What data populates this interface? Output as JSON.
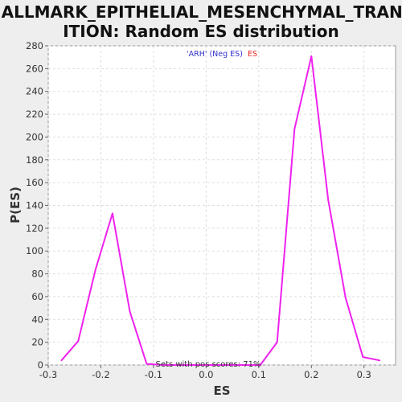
{
  "chart_data": {
    "type": "line",
    "title_lines": [
      "HALLMARK_EPITHELIAL_MESENCHYMAL_TRANS",
      "ITION: Random ES distribution"
    ],
    "xlabel": "ES",
    "ylabel": "P(ES)",
    "xlim": [
      -0.3,
      0.36
    ],
    "ylim": [
      0,
      280
    ],
    "x_ticks": [
      -0.3,
      -0.2,
      -0.1,
      0.0,
      0.1,
      0.2,
      0.3
    ],
    "x_tick_labels": [
      "-0.3",
      "-0.2",
      "-0.1",
      "0.0",
      "0.1",
      "0.2",
      "0.3"
    ],
    "y_ticks": [
      0,
      20,
      40,
      60,
      80,
      100,
      120,
      140,
      160,
      180,
      200,
      220,
      240,
      260,
      280
    ],
    "y_tick_labels": [
      "0",
      "20",
      "40",
      "60",
      "80",
      "100",
      "120",
      "140",
      "160",
      "180",
      "200",
      "220",
      "240",
      "260",
      "280"
    ],
    "grid": true,
    "legend": {
      "placement": "top-center",
      "part1": "'ARH' (Neg ES)",
      "part2": "ES",
      "part1_color": "#3333cc",
      "part2_color": "#ee2222"
    },
    "annotation": "Sets with pos scores: 71%",
    "series": [
      {
        "color": "#ee22ee",
        "points": [
          [
            -0.275,
            4
          ],
          [
            -0.243,
            21
          ],
          [
            -0.21,
            84
          ],
          [
            -0.178,
            133
          ],
          [
            -0.145,
            47
          ],
          [
            -0.113,
            1
          ],
          [
            -0.08,
            0
          ],
          [
            0.103,
            0
          ],
          [
            0.135,
            20
          ],
          [
            0.168,
            207
          ],
          [
            0.2,
            271
          ],
          [
            0.232,
            145
          ],
          [
            0.265,
            59
          ],
          [
            0.298,
            7
          ],
          [
            0.33,
            4
          ]
        ]
      }
    ]
  }
}
